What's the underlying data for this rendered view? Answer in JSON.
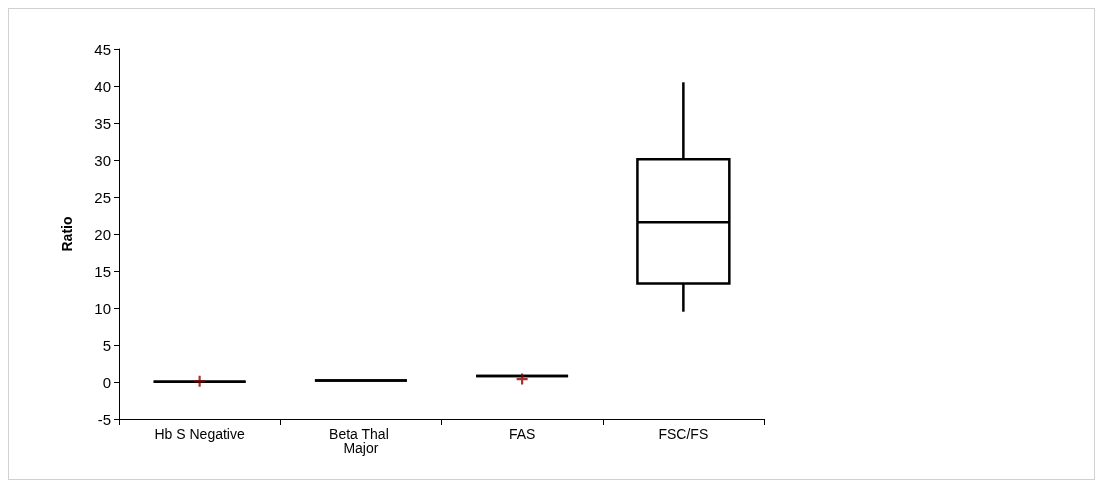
{
  "chart_data": {
    "type": "box",
    "ylabel": "Ratio",
    "categories": [
      "Hb S Negative",
      "Beta Thal Major",
      "FAS",
      "FSC/FS"
    ],
    "boxes": [
      {
        "low": 0.05,
        "q1": 0.05,
        "median": 0.05,
        "q3": 0.05,
        "high": 0.05,
        "mean": 0.1
      },
      {
        "low": 0.2,
        "q1": 0.2,
        "median": 0.2,
        "q3": 0.2,
        "high": 0.2
      },
      {
        "low": 0.8,
        "q1": 0.8,
        "median": 0.8,
        "q3": 0.8,
        "high": 0.8,
        "mean": 0.4
      },
      {
        "low": 9.5,
        "q1": 13.3,
        "median": 21.6,
        "q3": 30.1,
        "high": 40.5
      }
    ],
    "ylim": [
      -5,
      45
    ],
    "yticks": [
      -5,
      0,
      5,
      10,
      15,
      20,
      25,
      30,
      35,
      40,
      45
    ],
    "marker": "cross",
    "grid": false
  }
}
